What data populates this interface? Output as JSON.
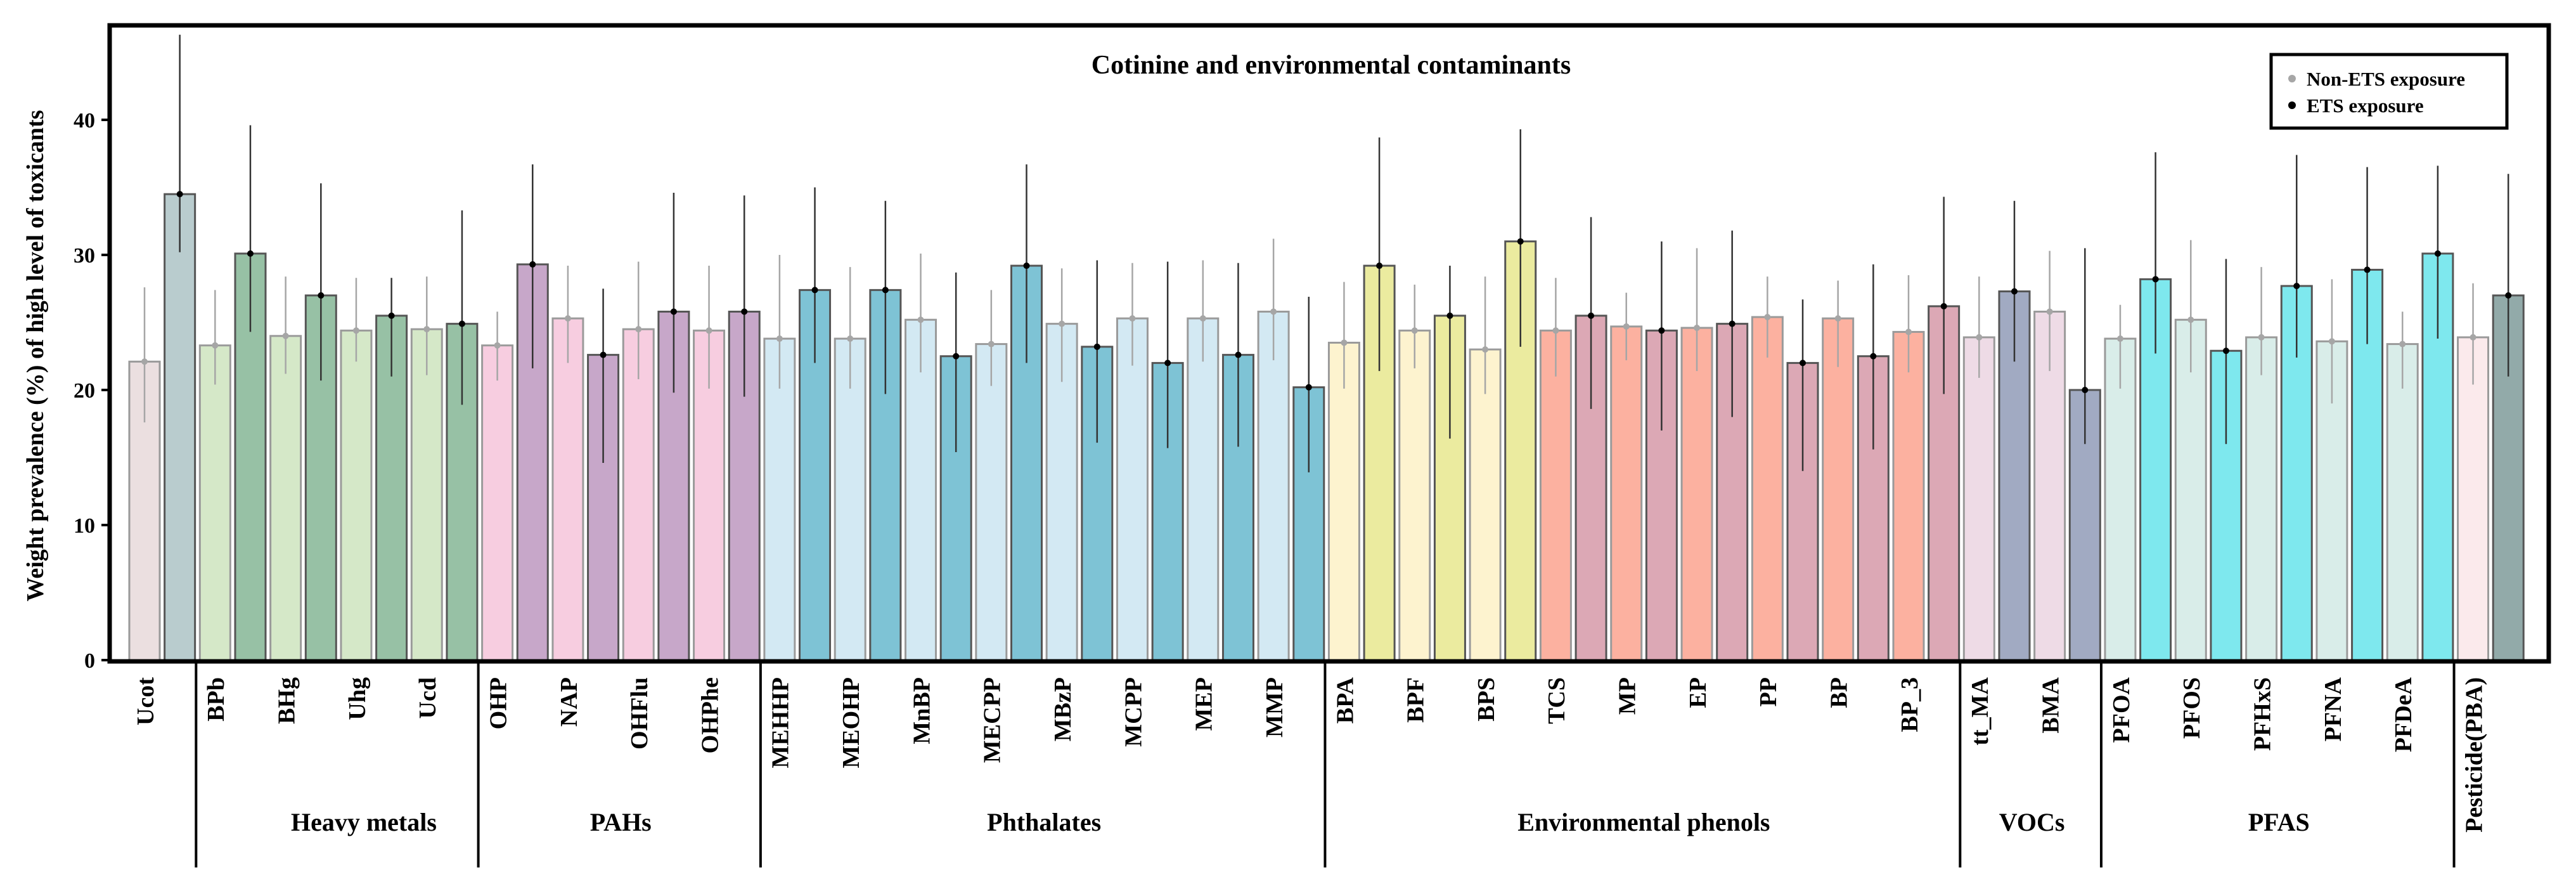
{
  "chart_data": {
    "type": "bar",
    "title": "Cotinine and environmental contaminants",
    "xlabel": "",
    "ylabel": "Weight prevalence (%) of high level of toxicants",
    "ylim": [
      0,
      47
    ],
    "yticks": [
      0,
      10,
      20,
      30,
      40
    ],
    "legend": {
      "placement": "top-right",
      "entries": [
        {
          "name": "Non-ETS exposure",
          "color": "#a6a6a6"
        },
        {
          "name": "ETS exposure",
          "color": "#000000"
        }
      ]
    },
    "groups": [
      {
        "name": "",
        "pollutants": [
          {
            "label": "Ucot",
            "non_ets": 22.1,
            "non_ci": [
              17.6,
              27.6
            ],
            "ets": 34.5,
            "ets_ci": [
              30.2,
              46.3
            ],
            "light": "#ebdfe0",
            "dark": "#b9ccce"
          }
        ]
      },
      {
        "name": "Heavy metals",
        "pollutants": [
          {
            "label": "BPb",
            "non_ets": 23.3,
            "non_ci": [
              20.4,
              27.4
            ],
            "ets": 30.1,
            "ets_ci": [
              24.3,
              39.6
            ],
            "light": "#d5e8c8",
            "dark": "#97c1a5"
          },
          {
            "label": "BHg",
            "non_ets": 24.0,
            "non_ci": [
              21.2,
              28.4
            ],
            "ets": 27.0,
            "ets_ci": [
              20.7,
              35.3
            ],
            "light": "#d5e8c8",
            "dark": "#97c1a5"
          },
          {
            "label": "Uhg",
            "non_ets": 24.4,
            "non_ci": [
              22.1,
              28.3
            ],
            "ets": 25.5,
            "ets_ci": [
              21.0,
              28.3
            ],
            "light": "#d5e8c8",
            "dark": "#97c1a5"
          },
          {
            "label": "Ucd",
            "non_ets": 24.5,
            "non_ci": [
              21.1,
              28.4
            ],
            "ets": 24.9,
            "ets_ci": [
              18.9,
              33.3
            ],
            "light": "#d5e8c8",
            "dark": "#97c1a5"
          }
        ]
      },
      {
        "name": "PAHs",
        "pollutants": [
          {
            "label": "OHP",
            "non_ets": 23.3,
            "non_ci": [
              20.7,
              25.8
            ],
            "ets": 29.3,
            "ets_ci": [
              21.6,
              36.7
            ],
            "light": "#f7cde0",
            "dark": "#c7a7c9"
          },
          {
            "label": "NAP",
            "non_ets": 25.3,
            "non_ci": [
              22.0,
              29.2
            ],
            "ets": 22.6,
            "ets_ci": [
              14.6,
              27.5
            ],
            "light": "#f7cde0",
            "dark": "#c7a7c9"
          },
          {
            "label": "OHFlu",
            "non_ets": 24.5,
            "non_ci": [
              20.8,
              29.5
            ],
            "ets": 25.8,
            "ets_ci": [
              19.8,
              34.6
            ],
            "light": "#f7cde0",
            "dark": "#c7a7c9"
          },
          {
            "label": "OHPhe",
            "non_ets": 24.4,
            "non_ci": [
              20.1,
              29.2
            ],
            "ets": 25.8,
            "ets_ci": [
              19.5,
              34.4
            ],
            "light": "#f7cde0",
            "dark": "#c7a7c9"
          }
        ]
      },
      {
        "name": "Phthalates",
        "pollutants": [
          {
            "label": "MEHHP",
            "non_ets": 23.8,
            "non_ci": [
              20.1,
              30.0
            ],
            "ets": 27.4,
            "ets_ci": [
              22.0,
              35.0
            ],
            "light": "#d3e9f3",
            "dark": "#7ec3d5"
          },
          {
            "label": "MEOHP",
            "non_ets": 23.8,
            "non_ci": [
              20.1,
              29.1
            ],
            "ets": 27.4,
            "ets_ci": [
              19.7,
              34.0
            ],
            "light": "#d3e9f3",
            "dark": "#7ec3d5"
          },
          {
            "label": "MnBP",
            "non_ets": 25.2,
            "non_ci": [
              21.3,
              30.1
            ],
            "ets": 22.5,
            "ets_ci": [
              15.4,
              28.7
            ],
            "light": "#d3e9f3",
            "dark": "#7ec3d5"
          },
          {
            "label": "MECPP",
            "non_ets": 23.4,
            "non_ci": [
              20.3,
              27.4
            ],
            "ets": 29.2,
            "ets_ci": [
              22.0,
              36.7
            ],
            "light": "#d3e9f3",
            "dark": "#7ec3d5"
          },
          {
            "label": "MBzP",
            "non_ets": 24.9,
            "non_ci": [
              20.6,
              29.0
            ],
            "ets": 23.2,
            "ets_ci": [
              16.1,
              29.6
            ],
            "light": "#d3e9f3",
            "dark": "#7ec3d5"
          },
          {
            "label": "MCPP",
            "non_ets": 25.3,
            "non_ci": [
              21.8,
              29.4
            ],
            "ets": 22.0,
            "ets_ci": [
              15.7,
              29.5
            ],
            "light": "#d3e9f3",
            "dark": "#7ec3d5"
          },
          {
            "label": "MEP",
            "non_ets": 25.3,
            "non_ci": [
              22.1,
              29.6
            ],
            "ets": 22.6,
            "ets_ci": [
              15.8,
              29.4
            ],
            "light": "#d3e9f3",
            "dark": "#7ec3d5"
          },
          {
            "label": "MMP",
            "non_ets": 25.8,
            "non_ci": [
              22.2,
              31.2
            ],
            "ets": 20.2,
            "ets_ci": [
              13.9,
              26.9
            ],
            "light": "#d3e9f3",
            "dark": "#7ec3d5"
          }
        ]
      },
      {
        "name": "Environmental phenols",
        "pollutants": [
          {
            "label": "BPA",
            "non_ets": 23.5,
            "non_ci": [
              20.1,
              28.0
            ],
            "ets": 29.2,
            "ets_ci": [
              21.4,
              38.7
            ],
            "light": "#fdf3cf",
            "dark": "#ebeb9f"
          },
          {
            "label": "BPF",
            "non_ets": 24.4,
            "non_ci": [
              21.6,
              27.8
            ],
            "ets": 25.5,
            "ets_ci": [
              16.4,
              29.2
            ],
            "light": "#fdf3cf",
            "dark": "#ebeb9f"
          },
          {
            "label": "BPS",
            "non_ets": 23.0,
            "non_ci": [
              19.7,
              28.4
            ],
            "ets": 31.0,
            "ets_ci": [
              23.2,
              39.3
            ],
            "light": "#fdf3cf",
            "dark": "#ebeb9f"
          },
          {
            "label": "TCS",
            "non_ets": 24.4,
            "non_ci": [
              21.0,
              28.3
            ],
            "ets": 25.5,
            "ets_ci": [
              18.6,
              32.8
            ],
            "light": "#fcb1a0",
            "dark": "#dca8b5"
          },
          {
            "label": "MP",
            "non_ets": 24.7,
            "non_ci": [
              22.2,
              27.2
            ],
            "ets": 24.4,
            "ets_ci": [
              17.0,
              31.0
            ],
            "light": "#fcb1a0",
            "dark": "#dca8b5"
          },
          {
            "label": "EP",
            "non_ets": 24.6,
            "non_ci": [
              21.4,
              30.5
            ],
            "ets": 24.9,
            "ets_ci": [
              18.0,
              31.8
            ],
            "light": "#fcb1a0",
            "dark": "#dca8b5"
          },
          {
            "label": "PP",
            "non_ets": 25.4,
            "non_ci": [
              22.4,
              28.4
            ],
            "ets": 22.0,
            "ets_ci": [
              14.0,
              26.7
            ],
            "light": "#fcb1a0",
            "dark": "#dca8b5"
          },
          {
            "label": "BP",
            "non_ets": 25.3,
            "non_ci": [
              21.7,
              28.1
            ],
            "ets": 22.5,
            "ets_ci": [
              15.6,
              29.3
            ],
            "light": "#fcb1a0",
            "dark": "#dca8b5"
          },
          {
            "label": "BP_3",
            "non_ets": 24.3,
            "non_ci": [
              21.3,
              28.5
            ],
            "ets": 26.2,
            "ets_ci": [
              19.7,
              34.3
            ],
            "light": "#fcb1a0",
            "dark": "#dca8b5"
          }
        ]
      },
      {
        "name": "VOCs",
        "pollutants": [
          {
            "label": "tt_MA",
            "non_ets": 23.9,
            "non_ci": [
              20.9,
              28.4
            ],
            "ets": 27.3,
            "ets_ci": [
              22.1,
              34.0
            ],
            "light": "#eedbe6",
            "dark": "#a1aac2"
          },
          {
            "label": "BMA",
            "non_ets": 25.8,
            "non_ci": [
              21.4,
              30.3
            ],
            "ets": 20.0,
            "ets_ci": [
              16.0,
              30.5
            ],
            "light": "#eedbe6",
            "dark": "#a1aac2"
          }
        ]
      },
      {
        "name": "PFAS",
        "pollutants": [
          {
            "label": "PFOA",
            "non_ets": 23.8,
            "non_ci": [
              20.1,
              26.3
            ],
            "ets": 28.2,
            "ets_ci": [
              22.7,
              37.6
            ],
            "light": "#d9ede9",
            "dark": "#7ee8ee"
          },
          {
            "label": "PFOS",
            "non_ets": 25.2,
            "non_ci": [
              21.3,
              31.1
            ],
            "ets": 22.9,
            "ets_ci": [
              16.0,
              29.7
            ],
            "light": "#d9ede9",
            "dark": "#7ee8ee"
          },
          {
            "label": "PFHxS",
            "non_ets": 23.9,
            "non_ci": [
              21.1,
              29.1
            ],
            "ets": 27.7,
            "ets_ci": [
              22.4,
              37.4
            ],
            "light": "#d9ede9",
            "dark": "#7ee8ee"
          },
          {
            "label": "PFNA",
            "non_ets": 23.6,
            "non_ci": [
              19.0,
              28.2
            ],
            "ets": 28.9,
            "ets_ci": [
              23.4,
              36.5
            ],
            "light": "#d9ede9",
            "dark": "#7ee8ee"
          },
          {
            "label": "PFDeA",
            "non_ets": 23.4,
            "non_ci": [
              20.1,
              25.8
            ],
            "ets": 30.1,
            "ets_ci": [
              23.8,
              36.6
            ],
            "light": "#d9ede9",
            "dark": "#7ee8ee"
          }
        ]
      },
      {
        "name": "",
        "pollutants": [
          {
            "label": "Pesticide(PBA)",
            "non_ets": 23.9,
            "non_ci": [
              20.4,
              27.9
            ],
            "ets": 27.0,
            "ets_ci": [
              21.0,
              36.0
            ],
            "light": "#fbeaec",
            "dark": "#92aaa9"
          }
        ]
      }
    ]
  }
}
